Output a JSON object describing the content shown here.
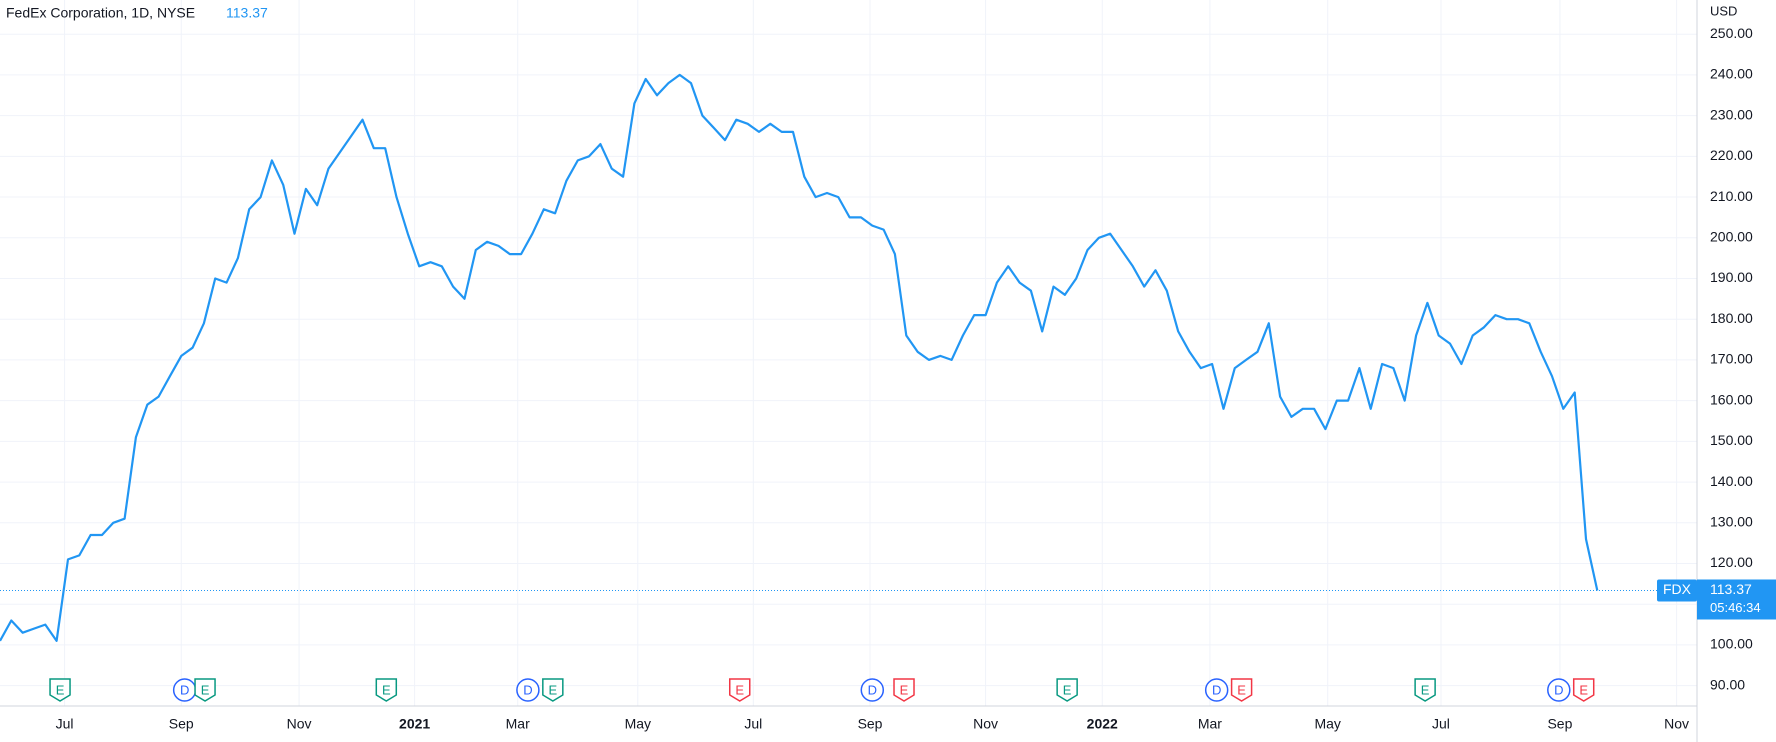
{
  "chart_data": {
    "type": "line",
    "title": "FedEx Corporation, 1D, NYSE",
    "currency": "USD",
    "symbol": "FDX",
    "countdown": "05:46:34",
    "color": "#2196f3",
    "grid": true,
    "series": [
      {
        "name": "FDX",
        "color": "#2196f3",
        "values": [
          101,
          106,
          103,
          104,
          105,
          101,
          121,
          122,
          127,
          127,
          130,
          131,
          151,
          159,
          161,
          166,
          171,
          173,
          179,
          190,
          189,
          195,
          207,
          210,
          219,
          213,
          201,
          212,
          208,
          217,
          221,
          225,
          229,
          222,
          222,
          210,
          201,
          193,
          194,
          193,
          188,
          185,
          197,
          199,
          198,
          196,
          196,
          201,
          207,
          206,
          214,
          219,
          220,
          223,
          217,
          215,
          233,
          239,
          235,
          238,
          240,
          238,
          230,
          227,
          224,
          229,
          228,
          226,
          228,
          226,
          226,
          215,
          210,
          211,
          210,
          205,
          205,
          203,
          202,
          196,
          176,
          172,
          170,
          171,
          170,
          176,
          181,
          181,
          189,
          193,
          189,
          187,
          177,
          188,
          186,
          190,
          197,
          200,
          201,
          197,
          193,
          188,
          192,
          187,
          177,
          172,
          168,
          169,
          158,
          168,
          170,
          172,
          179,
          161,
          156,
          158,
          158,
          153,
          160,
          160,
          168,
          158,
          169,
          168,
          160,
          176,
          184,
          176,
          174,
          169,
          176,
          178,
          181,
          180,
          180,
          179,
          172,
          166,
          158,
          162,
          126,
          113.37
        ]
      }
    ],
    "xlim": [
      0,
      149.8
    ],
    "xticks": [
      {
        "value": 5.7,
        "label": "Jul"
      },
      {
        "value": 16.0,
        "label": "Sep"
      },
      {
        "value": 26.4,
        "label": "Nov"
      },
      {
        "value": 36.6,
        "label": "2021"
      },
      {
        "value": 45.7,
        "label": "Mar"
      },
      {
        "value": 56.3,
        "label": "May"
      },
      {
        "value": 66.5,
        "label": "Jul"
      },
      {
        "value": 76.8,
        "label": "Sep"
      },
      {
        "value": 87.0,
        "label": "Nov"
      },
      {
        "value": 97.3,
        "label": "2022"
      },
      {
        "value": 106.8,
        "label": "Mar"
      },
      {
        "value": 117.2,
        "label": "May"
      },
      {
        "value": 127.2,
        "label": "Jul"
      },
      {
        "value": 137.7,
        "label": "Sep"
      },
      {
        "value": 148.0,
        "label": "Nov"
      }
    ],
    "ylim": [
      85,
      258.4
    ],
    "yticks": [
      {
        "value": 90,
        "label": "90.00"
      },
      {
        "value": 100,
        "label": "100.00"
      },
      {
        "value": 110,
        "label": "110.00"
      },
      {
        "value": 120,
        "label": "120.00"
      },
      {
        "value": 130,
        "label": "130.00"
      },
      {
        "value": 140,
        "label": "140.00"
      },
      {
        "value": 150,
        "label": "150.00"
      },
      {
        "value": 160,
        "label": "160.00"
      },
      {
        "value": 170,
        "label": "170.00"
      },
      {
        "value": 180,
        "label": "180.00"
      },
      {
        "value": 190,
        "label": "190.00"
      },
      {
        "value": 200,
        "label": "200.00"
      },
      {
        "value": 210,
        "label": "210.00"
      },
      {
        "value": 220,
        "label": "220.00"
      },
      {
        "value": 230,
        "label": "230.00"
      },
      {
        "value": 240,
        "label": "240.00"
      },
      {
        "value": 250,
        "label": "250.00"
      }
    ],
    "events": [
      {
        "label": "E",
        "x": 5.3,
        "color": "#089981"
      },
      {
        "label": "D",
        "x": 16.3,
        "color": "#2962ff"
      },
      {
        "label": "E",
        "x": 18.1,
        "color": "#089981"
      },
      {
        "label": "E",
        "x": 34.1,
        "color": "#089981"
      },
      {
        "label": "D",
        "x": 46.6,
        "color": "#2962ff"
      },
      {
        "label": "E",
        "x": 48.8,
        "color": "#089981"
      },
      {
        "label": "E",
        "x": 65.3,
        "color": "#f23645"
      },
      {
        "label": "D",
        "x": 77.0,
        "color": "#2962ff"
      },
      {
        "label": "E",
        "x": 79.8,
        "color": "#f23645"
      },
      {
        "label": "E",
        "x": 94.2,
        "color": "#089981"
      },
      {
        "label": "D",
        "x": 107.4,
        "color": "#2962ff"
      },
      {
        "label": "E",
        "x": 109.6,
        "color": "#f23645"
      },
      {
        "label": "E",
        "x": 125.8,
        "color": "#089981"
      },
      {
        "label": "D",
        "x": 137.6,
        "color": "#2962ff"
      },
      {
        "label": "E",
        "x": 139.8,
        "color": "#f23645"
      }
    ]
  }
}
